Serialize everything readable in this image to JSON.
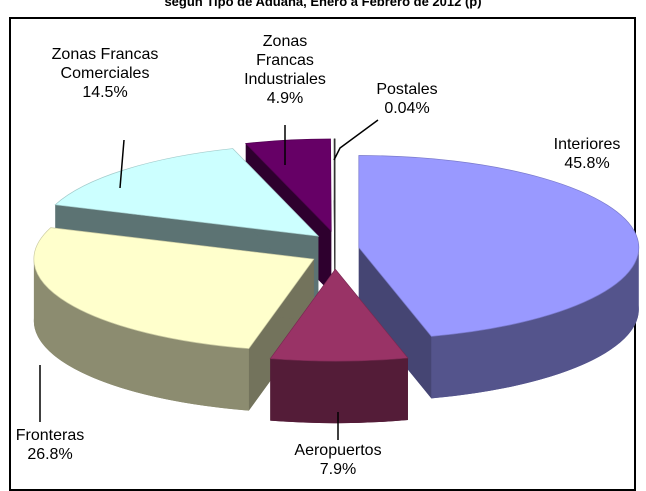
{
  "chart_data": {
    "type": "pie3d",
    "title": "según Tipo de Aduana, Enero a Febrero de 2012 (p)",
    "categories": [
      "Interiores",
      "Aeropuertos",
      "Fronteras",
      "Zonas Francas Comerciales",
      "Zonas Francas Industriales",
      "Postales"
    ],
    "values": [
      45.8,
      7.9,
      26.8,
      14.5,
      4.9,
      0.04
    ],
    "value_labels": [
      "45.8%",
      "7.9%",
      "26.8%",
      "14.5%",
      "4.9%",
      "0.04%"
    ],
    "colors": [
      "#9999ff",
      "#993366",
      "#ffffcc",
      "#ccffff",
      "#660066",
      "#ffffff"
    ]
  }
}
